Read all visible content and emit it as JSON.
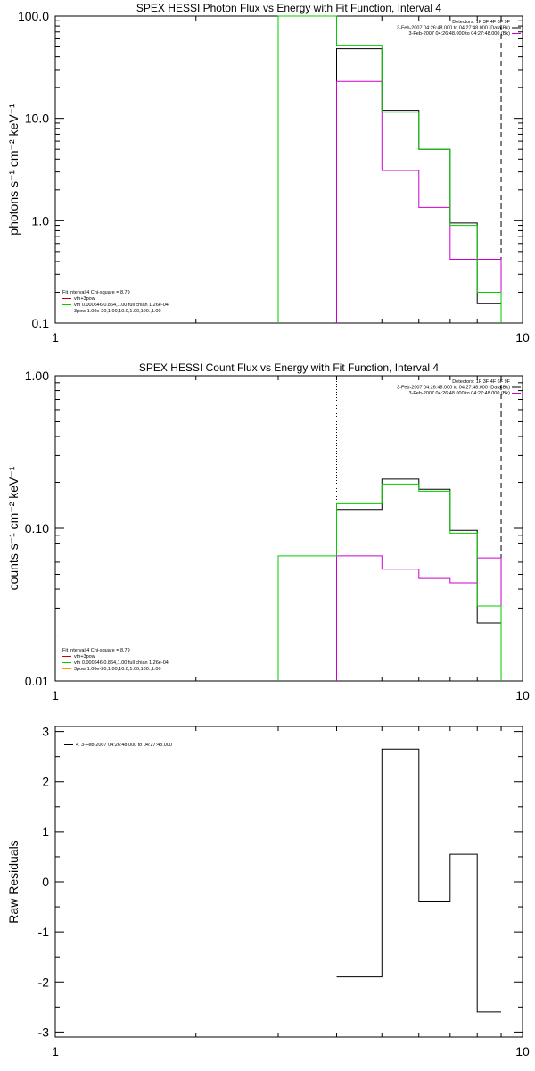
{
  "chart_data": [
    {
      "type": "line",
      "title": "SPEX HESSI Photon Flux vs Energy with Fit Function, Interval 4",
      "ylabel": "photons s⁻¹ cm⁻² keV⁻¹",
      "xlabel": "",
      "xscale": "log",
      "yscale": "log",
      "xlim": [
        1,
        10
      ],
      "ylim": [
        0.1,
        100
      ],
      "xticks": [
        "1",
        "10"
      ],
      "yticks": [
        "0.1",
        "1.0",
        "10.0",
        "100.0"
      ],
      "vlines": [
        {
          "x": 3.0,
          "style": "solid",
          "color": "#00cc00"
        },
        {
          "x": 4.0,
          "style": "dotted",
          "color": "#000000"
        },
        {
          "x": 9.0,
          "style": "dashed",
          "color": "#000000"
        }
      ],
      "bin_edges": [
        4,
        5,
        6,
        7,
        8,
        9
      ],
      "series": [
        {
          "name": "3-Feb-2007 04:26:48.000 to 04:27:48.000 (Data-Bk)",
          "color": "#000000",
          "values": [
            48,
            12,
            5,
            0.95,
            0.155
          ]
        },
        {
          "name": "3-Feb-2007 04:26:48.000 to 04:27:48.000 (Bk)",
          "color": "#cc00cc",
          "values": [
            23,
            3.1,
            1.35,
            0.42,
            0.42
          ]
        },
        {
          "name": "vth+3pow",
          "color": "#00cc00",
          "values": [
            52,
            11.5,
            5,
            0.9,
            0.2
          ],
          "extra_bin": {
            "x": [
              3,
              4
            ],
            "value": 100
          }
        }
      ],
      "legend_top": [
        "Detectors: 1F 3F 4F 6F 9F",
        "3-Feb-2007 04:26:48.000 to 04:27:48.000 (Data-Bk)",
        "3-Feb-2007 04:26:48.000 to 04:27:48.000 (Bk)"
      ],
      "legend_bottom": [
        "Fit Interval  4    Chi-square = 8.79",
        "vth+3pow",
        "vth 0.000646,0.864,1.00   full chian 1.26e-04",
        "3pow 1.00e-20,1.00,10.0,1.00,100.,1.00"
      ]
    },
    {
      "type": "line",
      "title": "SPEX HESSI Count Flux vs Energy with Fit Function, Interval 4",
      "ylabel": "counts s⁻¹ cm⁻² keV⁻¹",
      "xlabel": "",
      "xscale": "log",
      "yscale": "log",
      "xlim": [
        1,
        10
      ],
      "ylim": [
        0.01,
        1
      ],
      "xticks": [
        "1",
        "10"
      ],
      "yticks": [
        "0.01",
        "0.10",
        "1.00"
      ],
      "vlines": [
        {
          "x": 4.0,
          "style": "dotted",
          "color": "#000000"
        },
        {
          "x": 9.0,
          "style": "dashed",
          "color": "#000000"
        }
      ],
      "bin_edges": [
        4,
        5,
        6,
        7,
        8,
        9
      ],
      "series": [
        {
          "name": "3-Feb-2007 04:26:48.000 to 04:27:48.000 (Data-Bk)",
          "color": "#000000",
          "values": [
            0.133,
            0.21,
            0.18,
            0.097,
            0.024
          ]
        },
        {
          "name": "3-Feb-2007 04:26:48.000 to 04:27:48.000 (Bk)",
          "color": "#cc00cc",
          "values": [
            0.066,
            0.054,
            0.047,
            0.044,
            0.064
          ]
        },
        {
          "name": "vth+3pow",
          "color": "#00cc00",
          "values": [
            0.145,
            0.195,
            0.175,
            0.093,
            0.031
          ],
          "extra_bin": {
            "x": [
              3,
              4
            ],
            "value": 0.066
          }
        }
      ],
      "legend_top": [
        "Detectors: 1F 3F 4F 6F 9F",
        "3-Feb-2007 04:26:48.000 to 04:27:48.000 (Data-Bk)",
        "3-Feb-2007 04:26:48.000 to 04:27:48.000 (Bk)"
      ],
      "legend_bottom": [
        "Fit Interval  4    Chi-square = 8.79",
        "vth+3pow",
        "vth 0.000646,0.864,1.00   full chian 1.26e-04",
        "3pow 1.00e-20,1.00,10.0,1.00,100.,1.00"
      ]
    },
    {
      "type": "line",
      "title": "",
      "ylabel": "Raw Residuals",
      "xlabel": "",
      "xscale": "log",
      "yscale": "linear",
      "xlim": [
        1,
        10
      ],
      "ylim": [
        -3.1,
        3.1
      ],
      "xticks": [
        "1",
        "10"
      ],
      "yticks": [
        "-3",
        "-2",
        "-1",
        "0",
        "1",
        "2",
        "3"
      ],
      "bin_edges": [
        4,
        5,
        6,
        7,
        8,
        9
      ],
      "series": [
        {
          "name": "4.  3-Feb-2007 04:26:48.000 to 04:27:48.000",
          "color": "#000000",
          "values": [
            -1.9,
            2.65,
            -0.4,
            0.55,
            -2.6
          ]
        }
      ]
    }
  ],
  "colors": {
    "data": "#000000",
    "background": "#cc00cc",
    "fit": "#00cc00",
    "extra": "#ff9900",
    "red": "#cc0000"
  }
}
